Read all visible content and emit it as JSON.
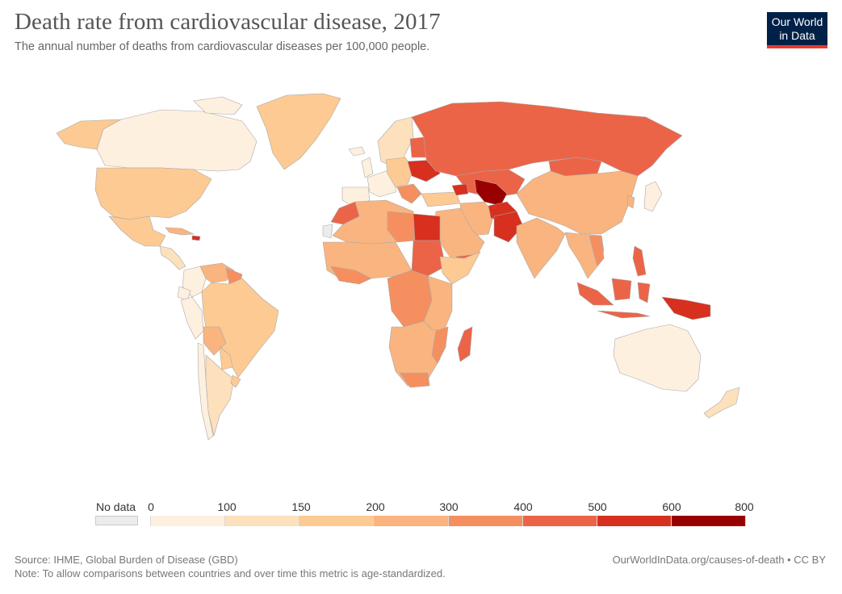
{
  "header": {
    "title": "Death rate from cardiovascular disease, 2017",
    "subtitle": "The annual number of deaths from cardiovascular diseases per 100,000 people."
  },
  "logo": {
    "line1": "Our World",
    "line2": "in Data"
  },
  "legend": {
    "no_data_label": "No data",
    "ticks": [
      "0",
      "100",
      "150",
      "200",
      "300",
      "400",
      "500",
      "600",
      "800"
    ],
    "colors": [
      "#fef0df",
      "#fde0bc",
      "#fcca92",
      "#f9b47f",
      "#f58f5f",
      "#ec6447",
      "#d7301f",
      "#990000"
    ],
    "no_data_color": "#ececec"
  },
  "footer": {
    "source": "Source: IHME, Global Burden of Disease (GBD)",
    "note": "Note: To allow comparisons between countries and over time this metric is age-standardized.",
    "url": "OurWorldInData.org/causes-of-death • CC BY"
  }
}
